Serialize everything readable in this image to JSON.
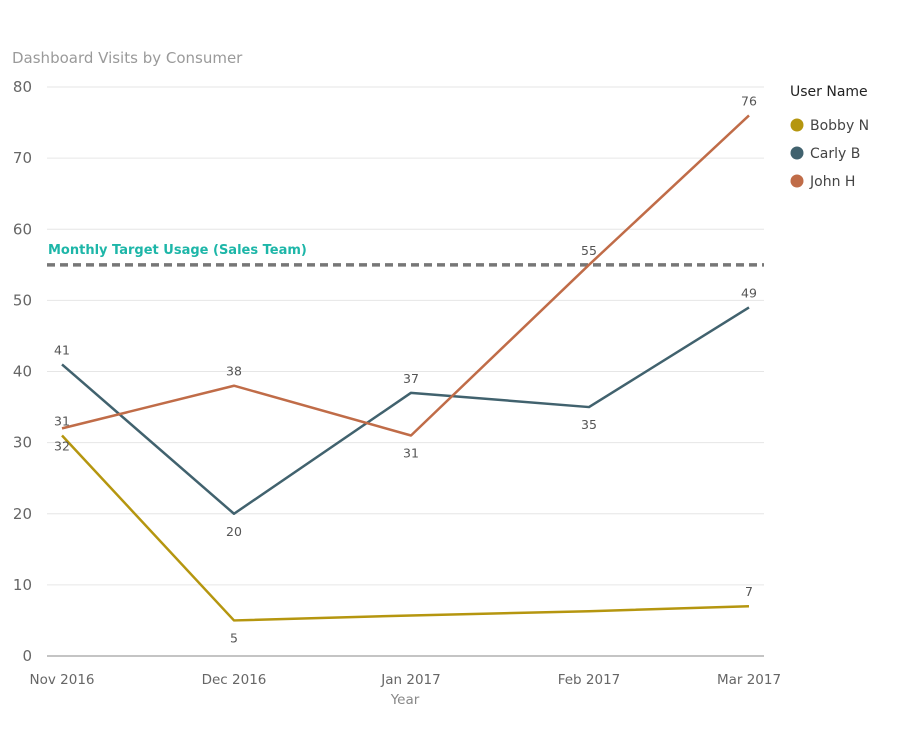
{
  "chart_data": {
    "type": "line",
    "title": "Dashboard Visits by Consumer",
    "xlabel": "Year",
    "ylabel": "",
    "categories": [
      "Nov 2016",
      "Dec 2016",
      "Jan 2017",
      "Feb 2017",
      "Mar 2017"
    ],
    "yticks": [
      0,
      10,
      20,
      30,
      40,
      50,
      60,
      70,
      80
    ],
    "ylim": [
      0,
      80
    ],
    "grid": true,
    "legend": {
      "title": "User Name",
      "position": "top-right"
    },
    "series": [
      {
        "name": "Bobby N",
        "color": "#b5960f",
        "values": [
          31,
          5,
          5.7,
          6.3,
          7
        ],
        "labels": [
          "31",
          "5",
          "",
          "",
          "7"
        ]
      },
      {
        "name": "Carly B",
        "color": "#41626e",
        "values": [
          41,
          20,
          37,
          35,
          49
        ],
        "labels": [
          "41",
          "20",
          "37",
          "35",
          "49"
        ]
      },
      {
        "name": "John H",
        "color": "#c06c48",
        "values": [
          32,
          38,
          31,
          55,
          76
        ],
        "labels": [
          "32",
          "38",
          "31",
          "55",
          "76"
        ]
      }
    ],
    "reference_line": {
      "label": "Monthly Target Usage (Sales Team)",
      "value": 55,
      "color": "#777777",
      "label_color": "#1db6a8"
    }
  }
}
